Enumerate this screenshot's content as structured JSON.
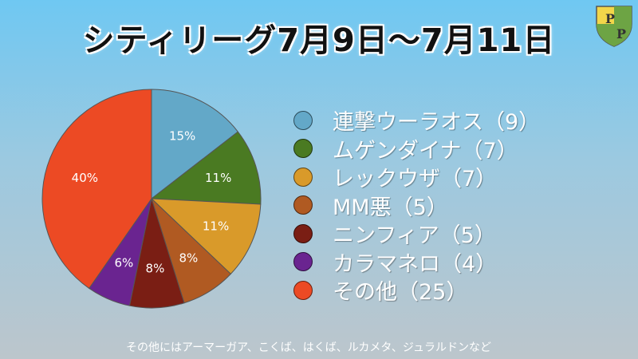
{
  "title": "シティリーグ7月9日〜7月11日",
  "chart_data": {
    "type": "pie",
    "categories": [
      "連撃ウーラオス",
      "ムゲンダイナ",
      "レックウザ",
      "MM悪",
      "ニンフィア",
      "カラマネロ",
      "その他"
    ],
    "counts": [
      9,
      7,
      7,
      5,
      5,
      4,
      25
    ],
    "percent_labels": [
      "15%",
      "11%",
      "11%",
      "8%",
      "8%",
      "6%",
      "40%"
    ],
    "colors": [
      "#63a8c8",
      "#4a7a22",
      "#d99a2a",
      "#b05a22",
      "#7a1e14",
      "#6a2490",
      "#ec4a24"
    ],
    "legend_labels": [
      "連撃ウーラオス（9）",
      "ムゲンダイナ（7）",
      "レックウザ（7）",
      "MM悪（5）",
      "ニンフィア（5）",
      "カラマネロ（4）",
      "その他（25）"
    ],
    "legend_position": "right"
  },
  "footnote": "その他にはアーマーガア、こくば、はくば、ルカメタ、ジュラルドンなど"
}
